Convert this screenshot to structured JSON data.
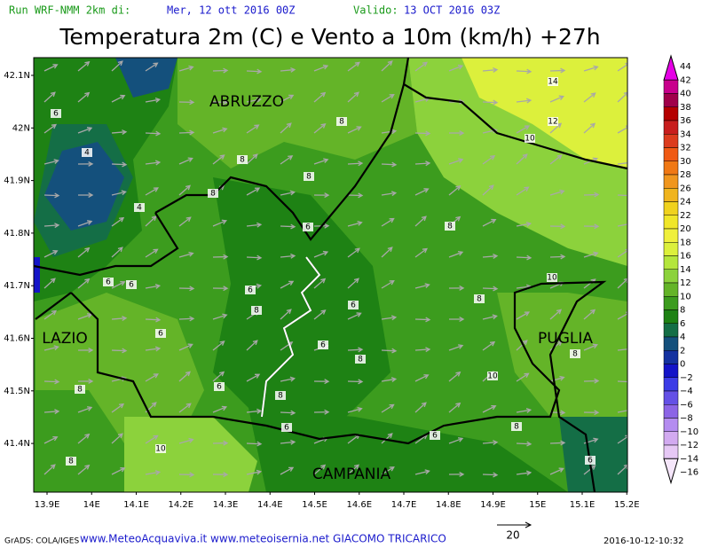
{
  "header": {
    "run_label": "Run WRF-NMM 2km di:",
    "run_date": "Mer, 12 ott 2016 00Z",
    "valid_label": "Valido:",
    "valid_date": "13 OCT 2016 03Z",
    "title": "Temperatura 2m (C) e Vento a 10m (km/h) +27h"
  },
  "map": {
    "lat_labels": [
      "42.1N",
      "42N",
      "41.9N",
      "41.8N",
      "41.7N",
      "41.6N",
      "41.5N",
      "41.4N"
    ],
    "lon_labels": [
      "13.9E",
      "14E",
      "14.1E",
      "14.2E",
      "14.3E",
      "14.4E",
      "14.5E",
      "14.6E",
      "14.7E",
      "14.8E",
      "14.9E",
      "15E",
      "15.1E",
      "15.2E"
    ],
    "regions": [
      "ABRUZZO",
      "LAZIO",
      "PUGLIA",
      "CAMPANIA"
    ],
    "contour_labels": [
      "14",
      "12",
      "10",
      "6",
      "4",
      "8",
      "8",
      "8",
      "8",
      "4",
      "6",
      "8",
      "6",
      "6",
      "6",
      "10",
      "8",
      "6",
      "8",
      "6",
      "6",
      "8",
      "8",
      "6",
      "10",
      "8",
      "8",
      "6",
      "6",
      "8",
      "10",
      "6",
      "8"
    ]
  },
  "colorbar": {
    "labels": [
      "44",
      "42",
      "40",
      "38",
      "36",
      "34",
      "32",
      "30",
      "28",
      "26",
      "24",
      "22",
      "20",
      "18",
      "16",
      "14",
      "12",
      "10",
      "8",
      "6",
      "4",
      "2",
      "0",
      "−2",
      "−4",
      "−6",
      "−8",
      "−10",
      "−12",
      "−14",
      "−16"
    ],
    "colors": [
      "#e600e6",
      "#c8008c",
      "#a0004a",
      "#b40000",
      "#c81e1e",
      "#dc3c1e",
      "#f05a14",
      "#f07814",
      "#f0961e",
      "#f0b41e",
      "#f0d21e",
      "#f0e628",
      "#f0f03c",
      "#dcf03c",
      "#b4e63c",
      "#8cd23c",
      "#64b428",
      "#3c9c1e",
      "#1e8214",
      "#146e46",
      "#14507c",
      "#1432a0",
      "#1414c8",
      "#3c3ce6",
      "#6450e6",
      "#8c64e6",
      "#b48cf0",
      "#d2aaf0",
      "#e6c8f5",
      "#f5e6fa"
    ]
  },
  "footer": {
    "grads": "GrADS: COLA/IGES",
    "credits": "www.MeteoAcquaviva.it www.meteoisernia.net GIACOMO TRICARICO",
    "vector_scale": "20",
    "timestamp": "2016-10-12-10:32"
  }
}
